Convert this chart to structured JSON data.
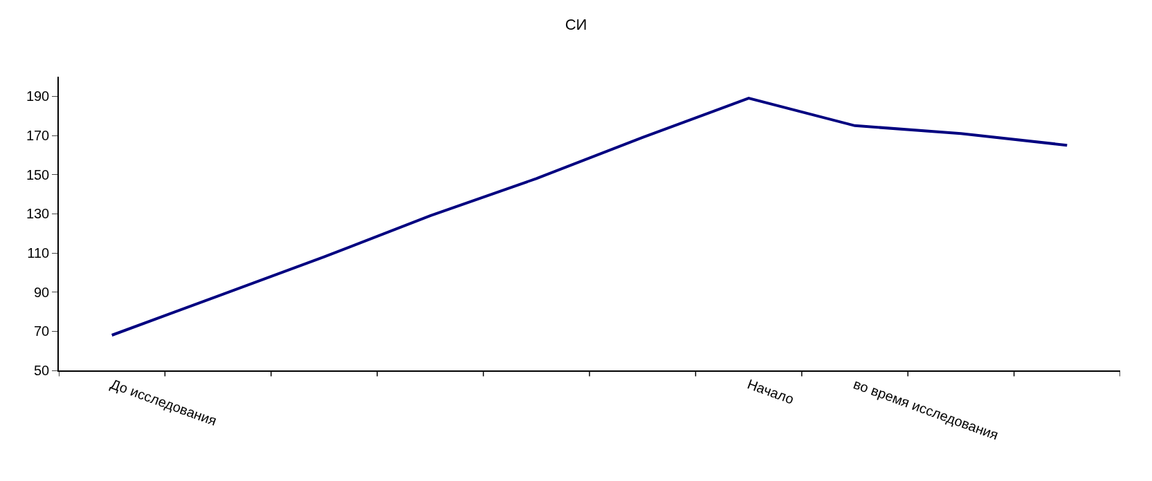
{
  "chart_data": {
    "type": "line",
    "title": "СИ",
    "categories": [
      "До исследования",
      null,
      null,
      null,
      null,
      null,
      "Начало",
      "во время исследования",
      null,
      null
    ],
    "series": [
      {
        "color": "#000080",
        "values": [
          68,
          88,
          108,
          129,
          148,
          169,
          189,
          175,
          171,
          165
        ]
      }
    ],
    "ylim": [
      50,
      200
    ],
    "yticks": [
      50,
      70,
      90,
      110,
      130,
      150,
      170,
      190
    ],
    "legend": false,
    "marker": "none",
    "line_style": "solid"
  }
}
